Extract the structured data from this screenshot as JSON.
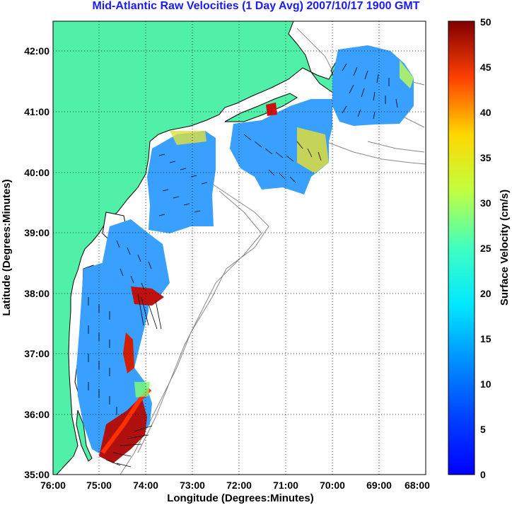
{
  "title": "Mid-Atlantic Raw Velocities (1 Day Avg) 2007/10/17 1900 GMT",
  "map": {
    "xlabel": "Longitude (Degrees:Minutes)",
    "ylabel": "Latitude (Degrees:Minutes)",
    "x_ticks": [
      "76:00",
      "75:00",
      "74:00",
      "73:00",
      "72:00",
      "71:00",
      "70:00",
      "69:00",
      "68:00"
    ],
    "y_ticks": [
      "42:00",
      "41:00",
      "40:00",
      "39:00",
      "38:00",
      "37:00",
      "36:00",
      "35:00"
    ],
    "lon_range": [
      -76,
      -68
    ],
    "lat_range": [
      35,
      42.5
    ],
    "land_color": "#50f0a8",
    "grid": true
  },
  "colorbar": {
    "label": "Surface Velocity (cm/s)",
    "ticks": [
      "0",
      "5",
      "10",
      "15",
      "20",
      "25",
      "30",
      "35",
      "40",
      "45",
      "50"
    ],
    "range": [
      0,
      50
    ],
    "colormap": "jet"
  }
}
